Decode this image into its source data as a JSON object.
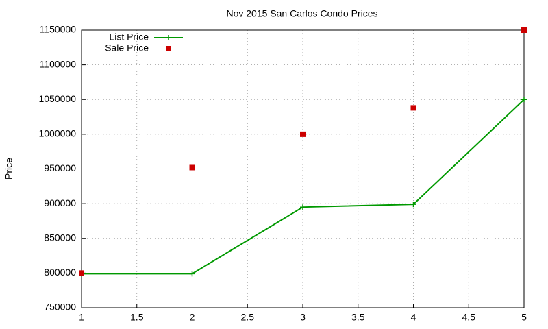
{
  "chart_data": {
    "type": "line",
    "title": "Nov 2015 San Carlos Condo Prices",
    "y_label": "Price",
    "x": [
      1,
      2,
      3,
      4,
      5
    ],
    "series": [
      {
        "name": "List Price",
        "type": "line",
        "color": "#009900",
        "values": [
          799000,
          799000,
          895000,
          899000,
          1050000
        ]
      },
      {
        "name": "Sale Price",
        "type": "scatter",
        "color": "#cc0000",
        "values": [
          800000,
          952000,
          1000000,
          1038000,
          1150000
        ]
      }
    ],
    "xlim": [
      1,
      5
    ],
    "xticks": [
      1,
      1.5,
      2,
      2.5,
      3,
      3.5,
      4,
      4.5,
      5
    ],
    "ylim": [
      750000,
      1150000
    ],
    "yticks": [
      750000,
      800000,
      850000,
      900000,
      950000,
      1000000,
      1050000,
      1100000,
      1150000
    ],
    "grid": true,
    "legend": "top-left"
  }
}
